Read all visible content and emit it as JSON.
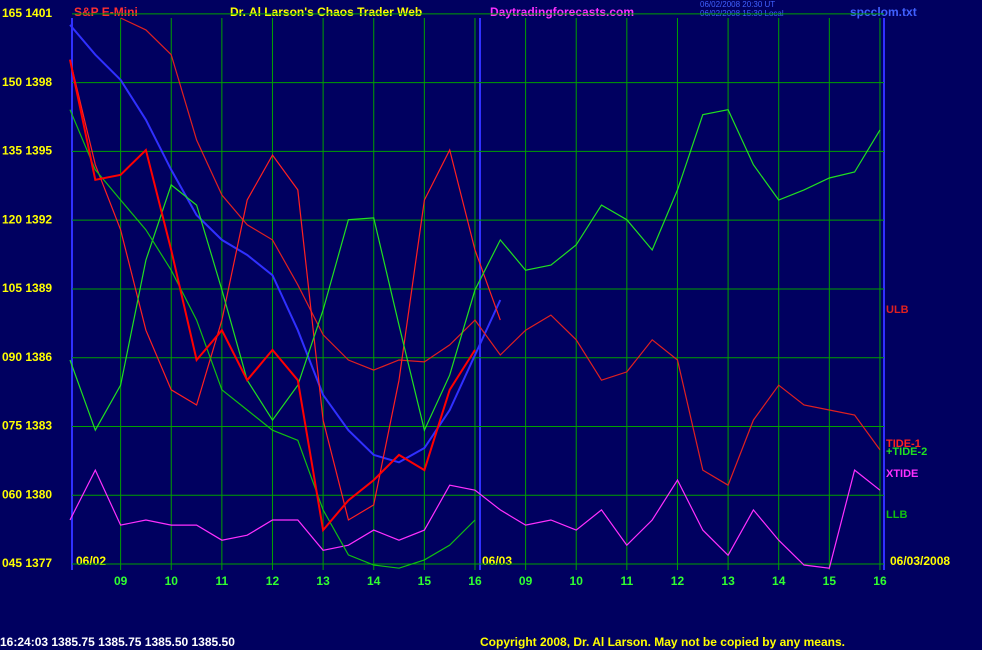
{
  "chart_data": {
    "type": "line",
    "instrument": "S&P E-Mini",
    "title": "Dr. Al Larson's Chaos Trader Web",
    "website": "Daytradingforecasts.com",
    "timestamps": [
      "06/02/2008 20:30 UT",
      "06/02/2008 15:30 Local"
    ],
    "file": "spcclom.txt",
    "date_labels": [
      "06/02",
      "06/03",
      "06/03/2008"
    ],
    "status": "16:24:03  1385.75  1385.75  1385.50  1385.50",
    "copyright": "Copyright 2008, Dr. Al Larson. May not be copied by any means.",
    "grid": true,
    "xlim": [
      8.0,
      24.08
    ],
    "ylim": [
      43.7,
      164.1
    ],
    "xticks": [
      {
        "value": 9,
        "label": "09"
      },
      10,
      11,
      12,
      13,
      14,
      15,
      16,
      {
        "value": 17,
        "label": "09"
      },
      {
        "value": 18,
        "label": "10"
      },
      {
        "value": 19,
        "label": "11"
      },
      {
        "value": 20,
        "label": "12"
      },
      {
        "value": 21,
        "label": "13"
      },
      {
        "value": 22,
        "label": "14"
      },
      {
        "value": 23,
        "label": "15"
      },
      {
        "value": 24,
        "label": "16"
      }
    ],
    "yticks": [
      {
        "value": 165,
        "label": "165 1401"
      },
      {
        "value": 150,
        "label": "150 1398"
      },
      {
        "value": 135,
        "label": "135 1395"
      },
      {
        "value": 120,
        "label": "120 1392"
      },
      {
        "value": 105,
        "label": "105 1389"
      },
      {
        "value": 90,
        "label": "090 1386"
      },
      {
        "value": 75,
        "label": "075 1383"
      },
      {
        "value": 60,
        "label": "060 1380"
      },
      {
        "value": 45,
        "label": "045 1377"
      }
    ],
    "x": [
      8.0,
      8.5,
      9.0,
      9.5,
      10.0,
      10.5,
      11.0,
      11.5,
      12.0,
      12.5,
      13.0,
      13.5,
      14.0,
      14.5,
      15.0,
      15.5,
      16.0,
      16.5,
      17.0,
      17.5,
      18.0,
      18.5,
      19.0,
      19.5,
      20.0,
      20.5,
      21.0,
      21.5,
      22.0,
      22.5,
      23.0,
      23.5,
      24.0
    ],
    "series": [
      {
        "color": "#3030ff",
        "values": [
          162.6,
          156.1,
          150.6,
          141.9,
          131.0,
          121.1,
          115.7,
          112.4,
          108.0,
          96.0,
          81.9,
          74.2,
          68.8,
          67.2,
          70.3,
          78.6,
          90.6,
          102.6,
          null,
          null,
          null,
          null,
          null,
          null,
          null,
          null,
          null,
          null,
          null,
          null,
          null,
          null,
          null
        ]
      },
      {
        "name": "ULB",
        "color": "#e02020",
        "values": [
          null,
          null,
          164.1,
          161.5,
          156.1,
          137.5,
          125.5,
          119.0,
          115.7,
          105.9,
          95.0,
          89.5,
          87.3,
          89.5,
          89.1,
          92.8,
          98.2,
          90.6,
          96.0,
          99.3,
          93.9,
          85.1,
          86.9,
          93.9,
          89.5,
          65.5,
          62.2,
          76.4,
          84.0,
          79.7,
          78.6,
          77.5,
          69.9
        ]
      },
      {
        "name": "TIDE-1",
        "color": "#ff2020",
        "values": [
          155.0,
          132.1,
          117.9,
          96.0,
          83.0,
          79.7,
          98.2,
          124.4,
          134.2,
          126.6,
          76.4,
          54.6,
          57.9,
          85.1,
          124.4,
          135.3,
          113.5,
          98.2,
          null,
          null,
          null,
          null,
          null,
          null,
          null,
          null,
          null,
          null,
          null,
          null,
          null,
          null,
          null
        ]
      },
      {
        "name": "+TIDE-2",
        "color": "#20e020",
        "values": [
          89.5,
          74.2,
          84.0,
          111.3,
          127.7,
          123.3,
          104.8,
          85.1,
          76.4,
          84.0,
          100.4,
          120.1,
          120.5,
          97.1,
          74.2,
          86.2,
          104.8,
          115.7,
          109.1,
          110.2,
          114.6,
          123.3,
          120.1,
          113.5,
          126.6,
          143.0,
          144.1,
          132.1,
          124.4,
          126.6,
          129.2,
          130.5,
          139.7
        ]
      },
      {
        "name": "XTIDE",
        "color": "#ff30ff",
        "values": [
          54.6,
          65.5,
          53.5,
          54.6,
          53.5,
          53.5,
          50.2,
          51.3,
          54.6,
          54.6,
          48.0,
          49.1,
          52.4,
          50.2,
          52.4,
          62.2,
          61.1,
          56.8,
          53.5,
          54.6,
          52.4,
          56.8,
          49.1,
          54.6,
          63.3,
          52.4,
          46.9,
          56.8,
          50.2,
          44.8,
          44.1,
          65.5,
          61.1
        ]
      },
      {
        "name": "LLB",
        "color": "#10c010",
        "values": [
          144.1,
          131.0,
          124.4,
          117.9,
          109.1,
          98.2,
          83.0,
          78.6,
          74.2,
          72.0,
          56.8,
          47.0,
          44.8,
          44.1,
          45.9,
          49.1,
          54.6,
          null,
          null,
          null,
          null,
          null,
          null,
          null,
          null,
          null,
          null,
          null,
          null,
          null,
          null,
          null,
          null
        ]
      },
      {
        "color": "#ff0000",
        "values": [
          155.0,
          128.8,
          129.9,
          135.3,
          113.5,
          89.5,
          96.0,
          85.1,
          91.7,
          85.1,
          52.4,
          58.9,
          63.3,
          68.8,
          65.5,
          83.0,
          91.7,
          null,
          null,
          null,
          null,
          null,
          null,
          null,
          null,
          null,
          null,
          null,
          null,
          null,
          null,
          null,
          null
        ]
      }
    ]
  }
}
